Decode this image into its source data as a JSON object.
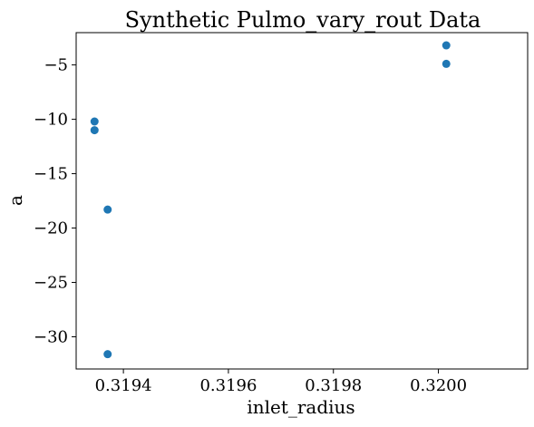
{
  "chart_data": {
    "type": "scatter",
    "title": "Synthetic Pulmo_vary_rout Data",
    "xlabel": "inlet_radius",
    "ylabel": "a",
    "xlim": [
      0.31931,
      0.32017
    ],
    "ylim": [
      -32.96,
      -2.03
    ],
    "x_ticks": [
      0.3194,
      0.3196,
      0.3198,
      0.32
    ],
    "x_tick_labels": [
      "0.3194",
      "0.3196",
      "0.3198",
      "0.3200"
    ],
    "y_ticks": [
      -30,
      -25,
      -20,
      -15,
      -10,
      -5
    ],
    "y_tick_labels": [
      "−30",
      "−25",
      "−20",
      "−15",
      "−10",
      "−5"
    ],
    "grid": false,
    "marker_color": "#1f77b4",
    "series": [
      {
        "x": [
          0.319345,
          0.319345,
          0.31937,
          0.31937,
          0.320015,
          0.320015
        ],
        "y": [
          -10.2,
          -11.0,
          -18.3,
          -31.6,
          -3.2,
          -4.9
        ]
      }
    ]
  }
}
